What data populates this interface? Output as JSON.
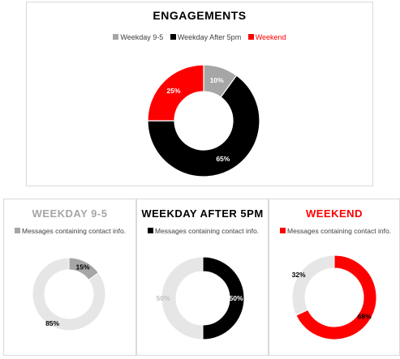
{
  "colors": {
    "gray": "#a6a6a6",
    "black": "#000000",
    "red": "#ff0000",
    "track": "#e6e6e6"
  },
  "chart_data": [
    {
      "type": "pie",
      "title": "ENGAGEMENTS",
      "legend": [
        "Weekday 9-5",
        "Weekday After 5pm",
        "Weekend"
      ],
      "categories": [
        "Weekday 9-5",
        "Weekday After 5pm",
        "Weekend"
      ],
      "values": [
        10,
        65,
        25
      ],
      "labels": [
        "10%",
        "65%",
        "25%"
      ],
      "legend_position": "top"
    },
    {
      "type": "pie",
      "title": "WEEKDAY 9-5",
      "legend": [
        "Messages containing contact info."
      ],
      "values": [
        15,
        85
      ],
      "labels": [
        "15%",
        "85%"
      ],
      "legend_position": "top"
    },
    {
      "type": "pie",
      "title": "WEEKDAY AFTER 5PM",
      "legend": [
        "Messages containing contact info."
      ],
      "values": [
        50,
        50
      ],
      "labels": [
        "50%",
        "50%"
      ],
      "legend_position": "top"
    },
    {
      "type": "pie",
      "title": "WEEKEND",
      "legend": [
        "Messages containing contact info."
      ],
      "values": [
        68,
        32
      ],
      "labels": [
        "68%",
        "32%"
      ],
      "legend_position": "top"
    }
  ]
}
